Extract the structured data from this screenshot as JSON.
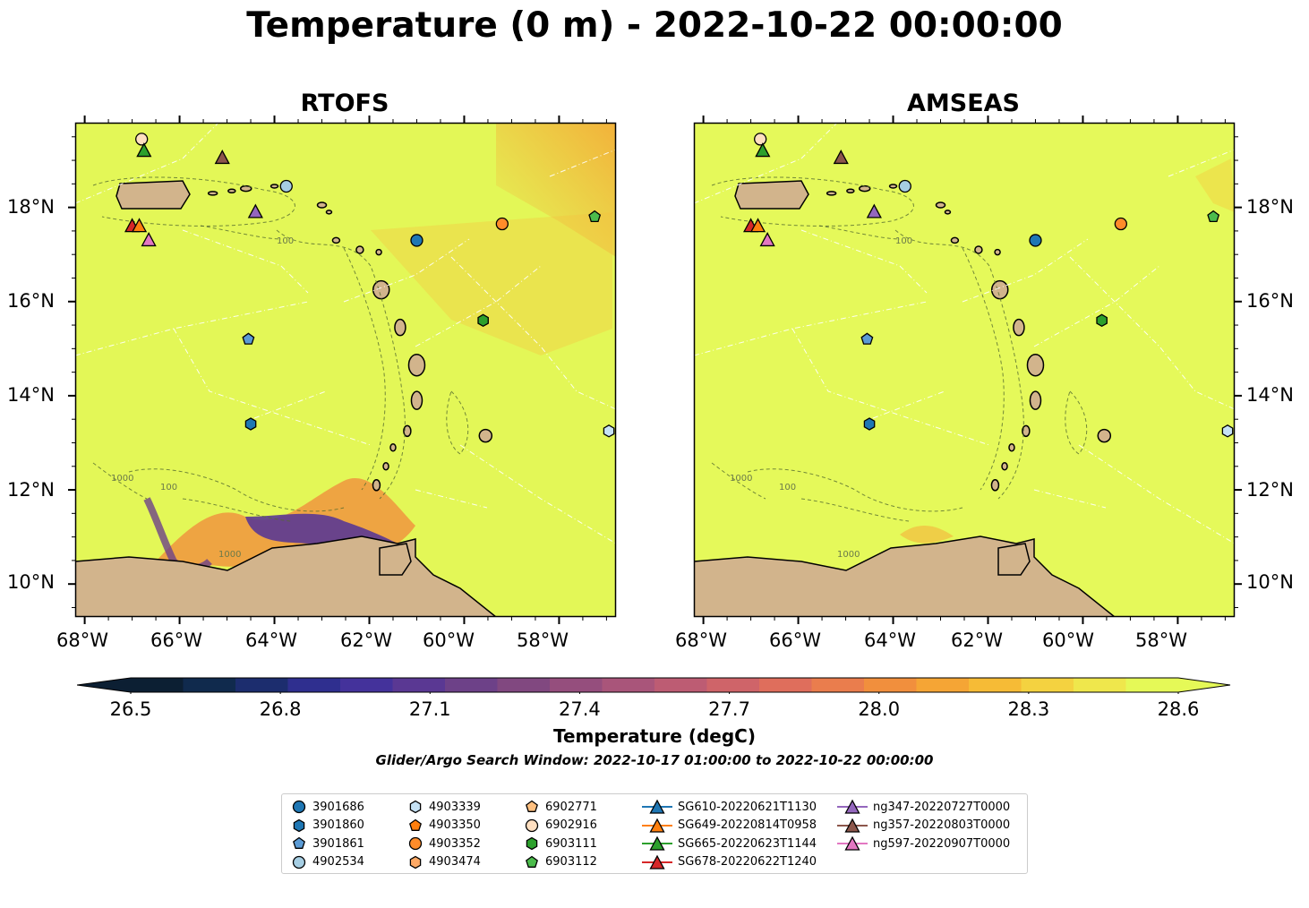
{
  "title": "Temperature (0 m) - 2022-10-22 00:00:00",
  "panels": [
    {
      "id": "rtofs",
      "title": "RTOFS"
    },
    {
      "id": "amseas",
      "title": "AMSEAS"
    }
  ],
  "axes": {
    "x_ticks": [
      "68°W",
      "66°W",
      "64°W",
      "62°W",
      "60°W",
      "58°W"
    ],
    "y_ticks": [
      "18°N",
      "16°N",
      "14°N",
      "12°N",
      "10°N"
    ],
    "lon_range": [
      -68.2,
      -56.8
    ],
    "lat_range": [
      9.3,
      19.8
    ]
  },
  "contour_labels": [
    "100",
    "1000"
  ],
  "colorbar": {
    "label": "Temperature (degC)",
    "ticks": [
      "26.5",
      "26.8",
      "27.1",
      "27.4",
      "27.7",
      "28.0",
      "28.3",
      "28.6"
    ],
    "range": [
      26.5,
      28.6
    ],
    "extend": "both",
    "colormap": "thermal",
    "colors": [
      "#0c1f33",
      "#102a4d",
      "#1c2d6e",
      "#2f2f8f",
      "#44329b",
      "#5a3893",
      "#6d4188",
      "#814880",
      "#954e7d",
      "#a9557a",
      "#bd5c73",
      "#cf6469",
      "#df6e5c",
      "#ea7d4d",
      "#f18f3d",
      "#f5a535",
      "#f6bb36",
      "#f4d240",
      "#efe74c",
      "#e5f957"
    ]
  },
  "subtitle": "Glider/Argo Search Window: 2022-10-17 01:00:00 to 2022-10-22 00:00:00",
  "colors": {
    "sea_rtofs": "#e3f757",
    "sea_amseas": "#e5f95a",
    "land": "#d2b48c",
    "warm_patch": "#f5b03a",
    "cool_patch": "#5d3b8f"
  },
  "legend": {
    "items": [
      {
        "label": "3901686",
        "marker": "circle",
        "color": "#1f77b4"
      },
      {
        "label": "3901860",
        "marker": "hexagon",
        "color": "#1f77b4"
      },
      {
        "label": "3901861",
        "marker": "pentagon",
        "color": "#5b9bd5"
      },
      {
        "label": "4902534",
        "marker": "circle",
        "color": "#a6cee3"
      },
      {
        "label": "4903339",
        "marker": "hexagon",
        "color": "#c6e2f5"
      },
      {
        "label": "4903350",
        "marker": "pentagon",
        "color": "#ff7f0e"
      },
      {
        "label": "4903352",
        "marker": "circle",
        "color": "#ff8c2a"
      },
      {
        "label": "4903474",
        "marker": "hexagon",
        "color": "#ffaa66"
      },
      {
        "label": "6902771",
        "marker": "pentagon",
        "color": "#ffc080"
      },
      {
        "label": "6902916",
        "marker": "circle",
        "color": "#ffdfc0"
      },
      {
        "label": "6903111",
        "marker": "hexagon",
        "color": "#2ca02c"
      },
      {
        "label": "6903112",
        "marker": "pentagon",
        "color": "#4cbc4c"
      },
      {
        "label": "SG610-20220621T1130",
        "marker": "triangle-line",
        "color": "#1f77b4"
      },
      {
        "label": "SG649-20220814T0958",
        "marker": "triangle-line",
        "color": "#ff7f0e"
      },
      {
        "label": "SG665-20220623T1144",
        "marker": "triangle-line",
        "color": "#2ca02c"
      },
      {
        "label": "SG678-20220622T1240",
        "marker": "triangle-line",
        "color": "#d62728"
      },
      {
        "label": "ng347-20220727T0000",
        "marker": "triangle-line",
        "color": "#9467bd"
      },
      {
        "label": "ng357-20220803T0000",
        "marker": "triangle-line",
        "color": "#8c564b"
      },
      {
        "label": "ng597-20220907T0000",
        "marker": "triangle-line",
        "color": "#e377c2"
      }
    ]
  },
  "observations": [
    {
      "id": "3901686",
      "lon": -61.0,
      "lat": 17.3,
      "marker": "circle",
      "color": "#1f77b4"
    },
    {
      "id": "3901860",
      "lon": -64.5,
      "lat": 13.4,
      "marker": "hexagon",
      "color": "#1f77b4"
    },
    {
      "id": "3901861",
      "lon": -64.55,
      "lat": 15.2,
      "marker": "pentagon",
      "color": "#5b9bd5"
    },
    {
      "id": "4902534",
      "lon": -63.75,
      "lat": 18.45,
      "marker": "circle",
      "color": "#a6cee3"
    },
    {
      "id": "4903339",
      "lon": -56.95,
      "lat": 13.25,
      "marker": "hexagon",
      "color": "#c6e2f5"
    },
    {
      "id": "4903352",
      "lon": -59.2,
      "lat": 17.65,
      "marker": "circle",
      "color": "#ff8c2a"
    },
    {
      "id": "6902916",
      "lon": -66.8,
      "lat": 19.45,
      "marker": "circle",
      "color": "#ffdfc0"
    },
    {
      "id": "6903111",
      "lon": -59.6,
      "lat": 15.6,
      "marker": "hexagon",
      "color": "#2ca02c"
    },
    {
      "id": "6903112",
      "lon": -57.25,
      "lat": 17.8,
      "marker": "pentagon",
      "color": "#4cbc4c"
    },
    {
      "id": "SG665-20220623T1144",
      "lon": -66.75,
      "lat": 19.2,
      "marker": "triangle",
      "color": "#2ca02c"
    },
    {
      "id": "SG678-20220622T1240",
      "lon": -67.0,
      "lat": 17.6,
      "marker": "triangle",
      "color": "#d62728"
    },
    {
      "id": "SG649-20220814T0958",
      "lon": -66.85,
      "lat": 17.6,
      "marker": "triangle",
      "color": "#ff7f0e"
    },
    {
      "id": "ng347-20220727T0000",
      "lon": -64.4,
      "lat": 17.9,
      "marker": "triangle",
      "color": "#9467bd"
    },
    {
      "id": "ng357-20220803T0000",
      "lon": -65.1,
      "lat": 19.05,
      "marker": "triangle",
      "color": "#8c564b"
    },
    {
      "id": "ng597-20220907T0000",
      "lon": -66.65,
      "lat": 17.3,
      "marker": "triangle",
      "color": "#e377c2"
    }
  ]
}
